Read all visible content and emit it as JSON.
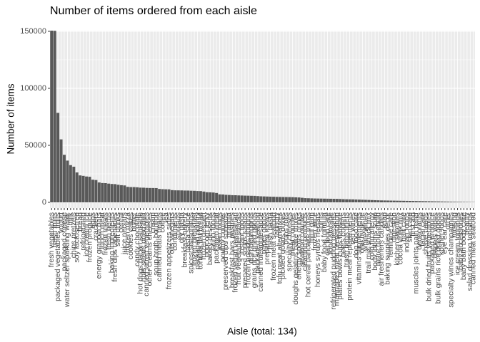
{
  "chart_data": {
    "type": "bar",
    "title": "Number of items ordered from each aisle",
    "x_label": "Aisle (total: 134)",
    "y_label": "Number of items",
    "color": "#595959",
    "grid": true,
    "ylim": [
      -5000,
      150600
    ],
    "yticks": [
      0,
      50000,
      100000,
      150000
    ],
    "categories": [
      "fresh vegetables",
      "fresh fruits",
      "packaged vegetables fruits",
      "yogurt",
      "packaged cheese",
      "water seltzer sparkling water",
      "milk",
      "chips pretzels",
      "soy lactosefree",
      "bread",
      "refrigerated",
      "ice cream ice",
      "frozen produce",
      "eggs",
      "crackers",
      "energy granola bars",
      "lunch meat",
      "frozen meals",
      "fresh herbs",
      "baking ingredients",
      "fresh dips tapenades",
      "soft drinks",
      "cereal",
      "juice nectars",
      "frozen pizza",
      "cookies cakes",
      "butter",
      "candy chocolate",
      "hot dogs bacon sausage",
      "nuts seeds dried fruit",
      "canned jarred vegetables",
      "other creams cheeses",
      "cream",
      "soup broth bouillon",
      "canned meals beans",
      "coffee",
      "tea",
      "frozen appetizers sides",
      "oils vinegars",
      "condiments",
      "spreads",
      "dry pasta",
      "breakfast bakery",
      "pasta sauce",
      "spices seasonings",
      "frozen breakfast",
      "packaged poultry",
      "tortillas flat bread",
      "frozen dessert",
      "popcorn jerky",
      "bakery desserts",
      "latino foods",
      "packaged meat",
      "asian foods",
      "poultry counter",
      "preserved dips spreads",
      "granola",
      "breakfast bars pastries",
      "frozen vegan vegetarian",
      "fruit vegetable snacks",
      "instant foods",
      "prepared soups salads",
      "frozen breads doughs",
      "dish detergents",
      "grains rice dried goods",
      "packaged seafood",
      "canned fruit applesauce",
      "paper goods",
      "prepared meals",
      "fresh pasta",
      "frozen meat seafood",
      "laundry",
      "tofu meat alternatives",
      "pickled goods olives",
      "buns rolls",
      "specialty cheeses",
      "meat counter",
      "doughs gelatins bake mixes",
      "energy sports drinks",
      "seafood counter",
      "cleaning products",
      "hot cereal pancake mixes",
      "mint gum",
      "frozen juice",
      "honeys syrups nectars",
      "spirits",
      "baby food formula",
      "cat food care",
      "food storage",
      "refrigerated pudding desserts",
      "marinades meat preparation",
      "plates bowls cups flatware",
      "beers coolers",
      "trash bags liners",
      "protein meal replacements",
      "red wines",
      "dog food care",
      "vitamins supplements",
      "oral hygiene",
      "white wines",
      "trail mix snack mix",
      "cold flu allergy",
      "body lotions soap",
      "more household",
      "air fresheners candles",
      "soap",
      "baking supplies decor",
      "feminine care",
      "digestion",
      "kitchen supplies",
      "cocoa drink mix",
      "hair care",
      "indian foods",
      "skin care",
      "first aid",
      "muscles joints pain relief",
      "deodorants",
      "facial care",
      "shave needs",
      "bulk dried fruits vegetables",
      "packaged produce",
      "diapers wipes",
      "bulk grains rice dried goods",
      "kosher foods",
      "eye ear care",
      "other",
      "specialty wines champagnes",
      "missing",
      "ice cream toppings",
      "baby accessories",
      "baby bath body care",
      "beauty",
      "salad dressing toppings",
      "canned meat seafood"
    ],
    "values": [
      150609,
      150473,
      78493,
      55240,
      41699,
      36617,
      32644,
      31269,
      26240,
      23635,
      23228,
      22676,
      22453,
      19875,
      19592,
      17449,
      16957,
      16870,
      16432,
      16119,
      15990,
      15430,
      15060,
      14836,
      13600,
      13395,
      13370,
      13223,
      12914,
      12856,
      12679,
      12585,
      12564,
      12521,
      11774,
      11581,
      11457,
      11420,
      10726,
      10553,
      10520,
      10483,
      10358,
      10346,
      10204,
      10123,
      9940,
      9868,
      9451,
      8885,
      8790,
      8620,
      8220,
      7007,
      6900,
      6600,
      6480,
      6300,
      6250,
      6100,
      6000,
      5900,
      5850,
      5750,
      5700,
      5500,
      5300,
      5200,
      5100,
      5000,
      4900,
      4800,
      4750,
      4700,
      4650,
      4600,
      4550,
      4400,
      4300,
      4000,
      3700,
      3600,
      3500,
      3400,
      3350,
      3300,
      3250,
      3200,
      3150,
      3100,
      3050,
      2950,
      2800,
      2700,
      2650,
      2600,
      2500,
      2400,
      2300,
      2200,
      2100,
      2000,
      1900,
      1800,
      1700,
      1650,
      1600,
      1550,
      1500,
      1450,
      1400,
      1350,
      1300,
      1250,
      1200,
      1150,
      1100,
      1050,
      1000,
      950,
      900,
      850,
      800,
      750,
      700,
      650,
      600,
      550,
      500,
      450,
      400,
      350,
      300,
      250
    ]
  }
}
